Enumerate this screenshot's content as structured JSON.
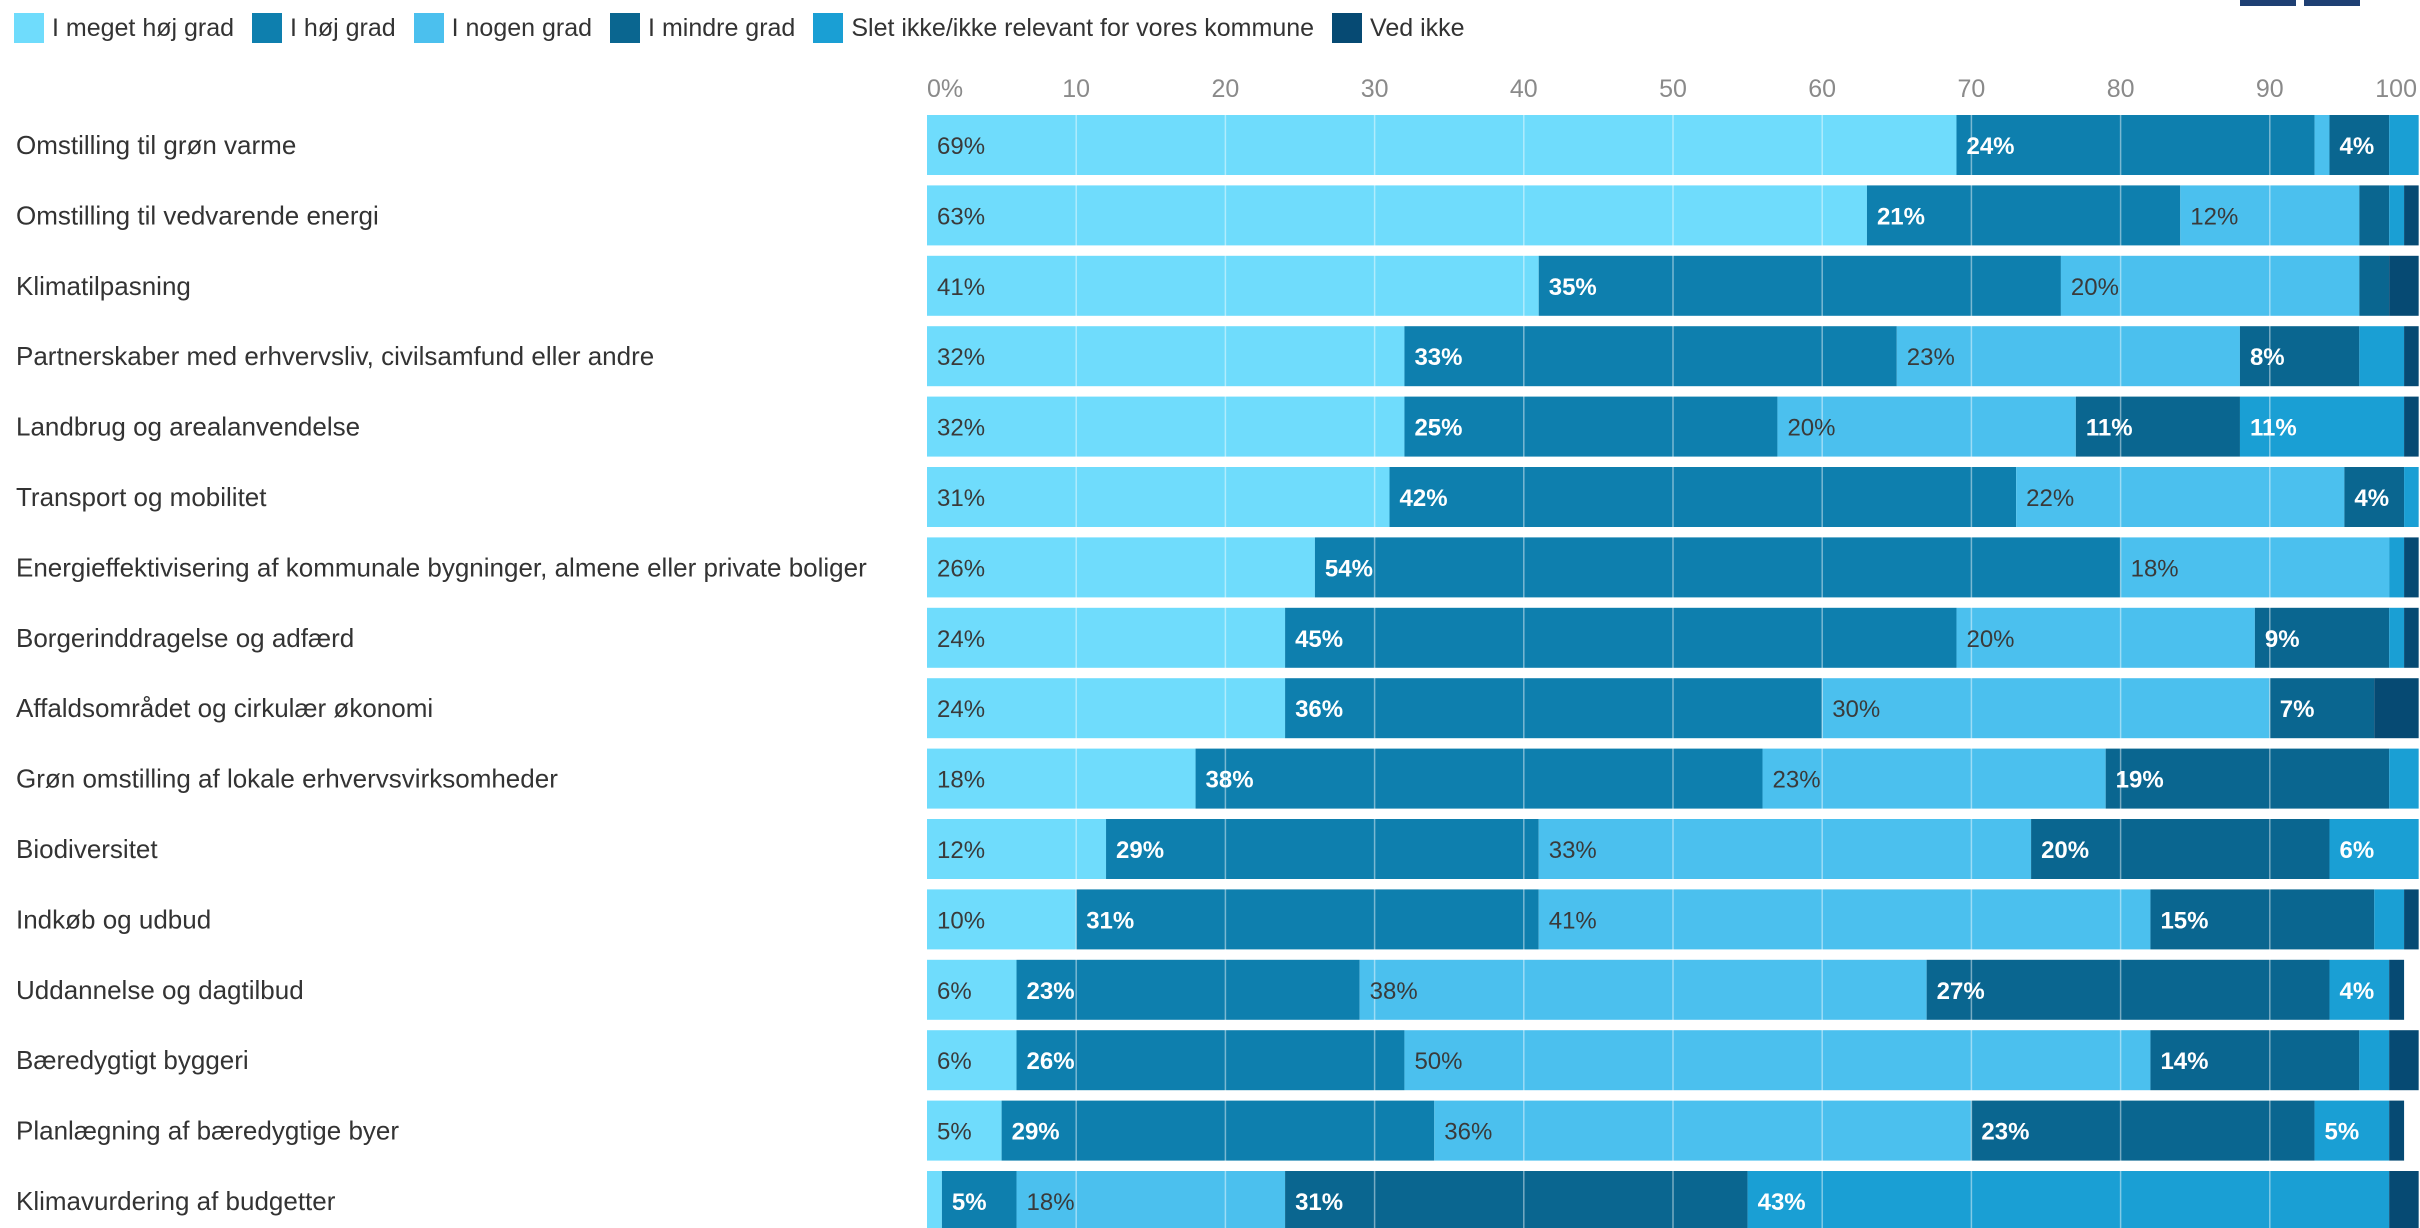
{
  "colors": {
    "I meget høj grad": "#6fdcfc",
    "I høj grad": "#0e7fae",
    "I nogen grad": "#4bc0ee",
    "I mindre grad": "#0a6690",
    "Slet ikke/ikke relevant for vores kommune": "#1a9fd4",
    "Ved ikke": "#064a73"
  },
  "chart_data": {
    "type": "bar",
    "orientation": "horizontal",
    "stacked": true,
    "xlim": [
      0,
      100
    ],
    "xticks": [
      0,
      10,
      20,
      30,
      40,
      50,
      60,
      70,
      80,
      90,
      100
    ],
    "xtick_labels": [
      "0%",
      "10",
      "20",
      "30",
      "40",
      "50",
      "60",
      "70",
      "80",
      "90",
      "100"
    ],
    "grid": true,
    "legend_position": "top-left",
    "categories": [
      "Omstilling til grøn varme",
      "Omstilling til vedvarende energi",
      "Klimatilpasning",
      "Partnerskaber med erhvervsliv, civilsamfund eller andre",
      "Landbrug og arealanvendelse",
      "Transport og mobilitet",
      "Energieffektivisering af kommunale bygninger, almene eller private boliger",
      "Borgerinddragelse og adfærd",
      "Affaldsområdet og cirkulær økonomi",
      "Grøn omstilling af lokale erhvervsvirksomheder",
      "Biodiversitet",
      "Indkøb og udbud",
      "Uddannelse og dagtilbud",
      "Bæredygtigt byggeri",
      "Planlægning af bæredygtige byer",
      "Klimavurdering af budgetter"
    ],
    "series": [
      {
        "name": "I meget høj grad",
        "values": [
          69,
          63,
          41,
          32,
          32,
          31,
          26,
          24,
          24,
          18,
          12,
          10,
          6,
          6,
          5,
          1
        ]
      },
      {
        "name": "I høj grad",
        "values": [
          24,
          21,
          35,
          33,
          25,
          42,
          54,
          45,
          36,
          38,
          29,
          31,
          23,
          26,
          29,
          5
        ]
      },
      {
        "name": "I nogen grad",
        "values": [
          1,
          12,
          20,
          23,
          20,
          22,
          18,
          20,
          30,
          23,
          33,
          41,
          38,
          50,
          36,
          18
        ]
      },
      {
        "name": "I mindre grad",
        "values": [
          4,
          2,
          2,
          8,
          11,
          4,
          0,
          9,
          7,
          19,
          20,
          15,
          27,
          14,
          23,
          31
        ]
      },
      {
        "name": "Slet ikke/ikke relevant for vores kommune",
        "values": [
          2,
          1,
          0,
          3,
          11,
          1,
          1,
          1,
          0,
          2,
          6,
          2,
          4,
          2,
          5,
          43
        ]
      },
      {
        "name": "Ved ikke",
        "values": [
          0,
          1,
          2,
          1,
          1,
          1,
          1,
          1,
          3,
          0,
          0,
          1,
          1,
          2,
          1,
          2
        ]
      }
    ],
    "data_labels": [
      [
        "69%",
        "24%",
        "",
        "4%",
        "",
        ""
      ],
      [
        "63%",
        "21%",
        "12%",
        "",
        "",
        ""
      ],
      [
        "41%",
        "35%",
        "20%",
        "",
        "",
        ""
      ],
      [
        "32%",
        "33%",
        "23%",
        "8%",
        "",
        ""
      ],
      [
        "32%",
        "25%",
        "20%",
        "11%",
        "11%",
        ""
      ],
      [
        "31%",
        "42%",
        "22%",
        "4%",
        "",
        ""
      ],
      [
        "26%",
        "54%",
        "18%",
        "",
        "",
        ""
      ],
      [
        "24%",
        "45%",
        "20%",
        "9%",
        "",
        ""
      ],
      [
        "24%",
        "36%",
        "30%",
        "7%",
        "",
        ""
      ],
      [
        "18%",
        "38%",
        "23%",
        "19%",
        "",
        ""
      ],
      [
        "12%",
        "29%",
        "33%",
        "20%",
        "6%",
        ""
      ],
      [
        "10%",
        "31%",
        "41%",
        "15%",
        "",
        ""
      ],
      [
        "6%",
        "23%",
        "38%",
        "27%",
        "4%",
        ""
      ],
      [
        "6%",
        "26%",
        "50%",
        "14%",
        "",
        ""
      ],
      [
        "5%",
        "29%",
        "36%",
        "23%",
        "5%",
        ""
      ],
      [
        "",
        "5%",
        "18%",
        "31%",
        "43%",
        ""
      ]
    ]
  }
}
